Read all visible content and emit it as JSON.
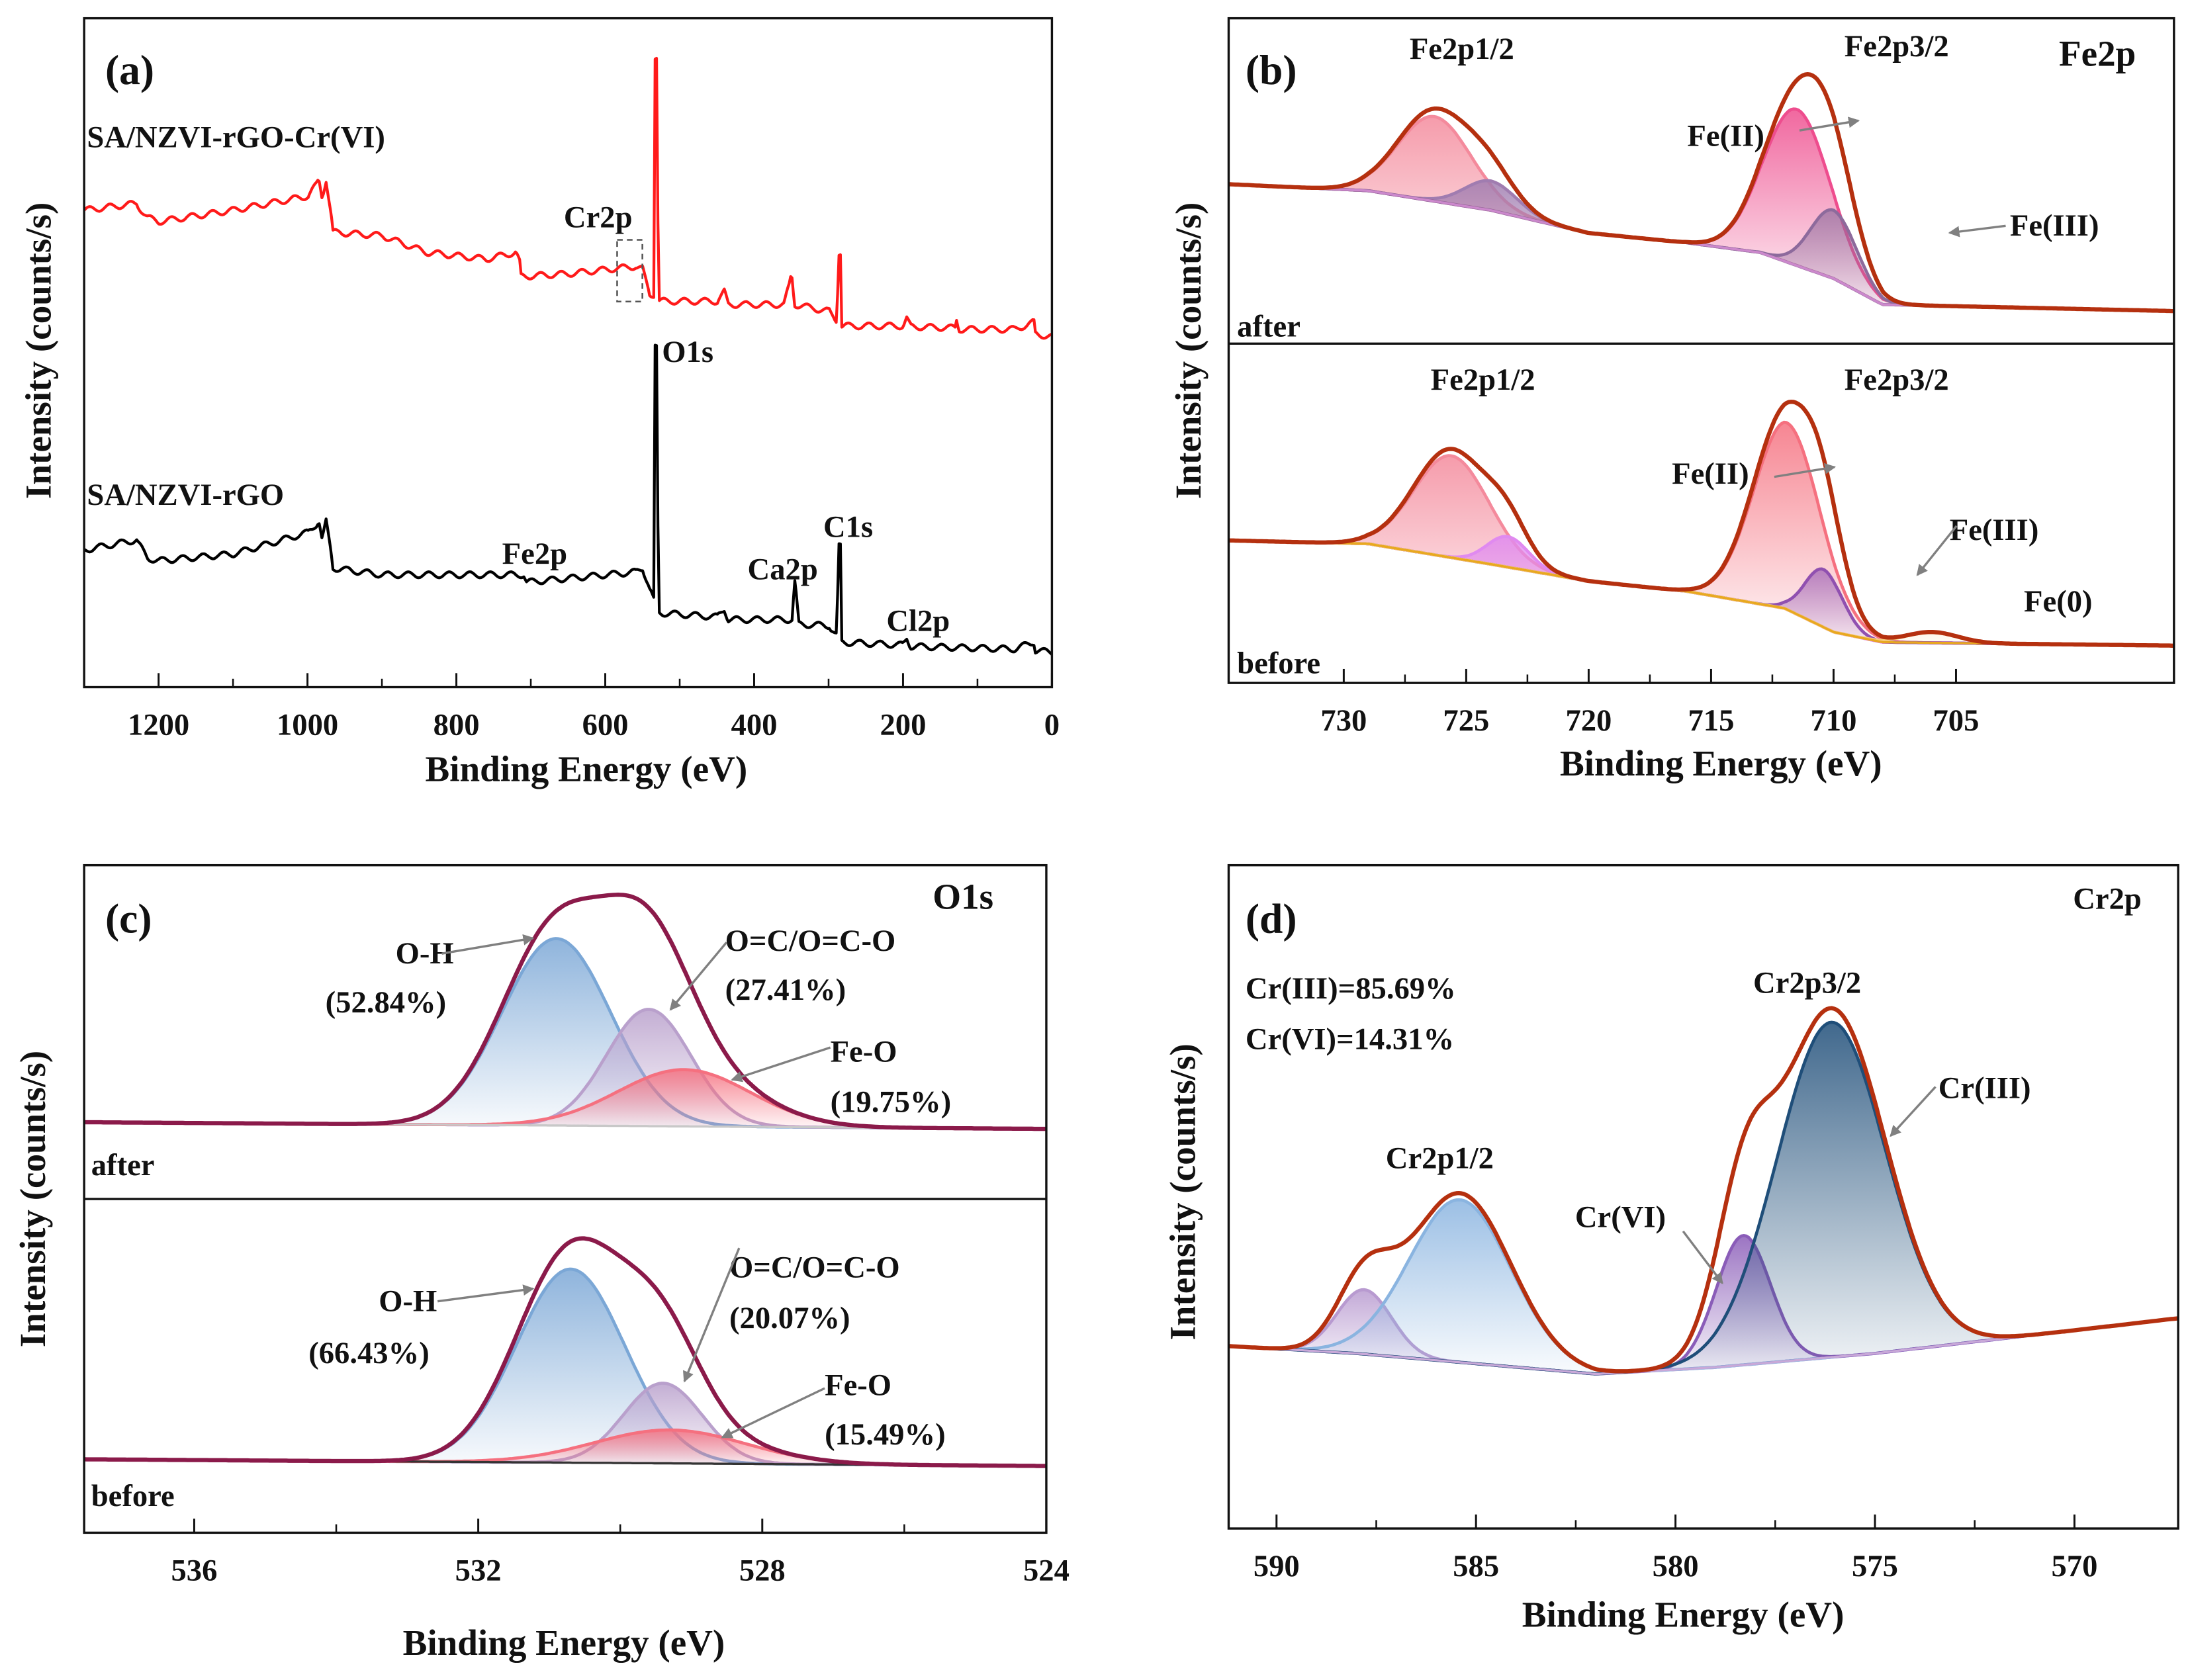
{
  "chart_data": [
    {
      "id": "a",
      "type": "line",
      "panel_label": "(a)",
      "title": "",
      "xlabel": "Binding Energy (eV)",
      "ylabel": "Intensity (counts/s)",
      "xlim": [
        1300,
        0
      ],
      "ylim": [
        0,
        100
      ],
      "x_reversed": true,
      "xticks": [
        1200,
        1000,
        800,
        600,
        400,
        200,
        0
      ],
      "grid": false,
      "series": [
        {
          "name": "SA/NZVI-rGO-Cr(VI)",
          "color": "#ff1a1a",
          "points": [
            [
              1300,
              71.3
            ],
            [
              1230,
              72.3
            ],
            [
              1215,
              70.2
            ],
            [
              1200,
              69.6
            ],
            [
              1100,
              71.3
            ],
            [
              1000,
              73.4
            ],
            [
              985,
              75.5
            ],
            [
              980,
              73.4
            ],
            [
              975,
              75.9
            ],
            [
              965,
              68
            ],
            [
              900,
              67.5
            ],
            [
              840,
              65
            ],
            [
              760,
              64
            ],
            [
              720,
              65
            ],
            [
              715,
              63.5
            ],
            [
              712,
              61.4
            ],
            [
              650,
              61.8
            ],
            [
              560,
              62.9
            ],
            [
              550,
              62.5
            ],
            [
              540,
              58.7
            ],
            [
              535,
              58.7
            ],
            [
              532,
              94.3
            ],
            [
              528,
              57.7
            ],
            [
              450,
              57.7
            ],
            [
              440,
              59.1
            ],
            [
              435,
              57.2
            ],
            [
              360,
              57.2
            ],
            [
              350,
              61.2
            ],
            [
              345,
              57.2
            ],
            [
              300,
              56.2
            ],
            [
              290,
              54.9
            ],
            [
              285,
              65
            ],
            [
              282,
              54
            ],
            [
              200,
              54
            ],
            [
              195,
              55.1
            ],
            [
              190,
              53.9
            ],
            [
              130,
              53.7
            ],
            [
              128,
              54.9
            ],
            [
              125,
              53.5
            ],
            [
              50,
              53.5
            ],
            [
              25,
              54.5
            ],
            [
              22,
              52.8
            ],
            [
              0,
              52.4
            ]
          ]
        },
        {
          "name": "SA/NZVI-rGO",
          "color": "#000000",
          "points": [
            [
              1300,
              20.5
            ],
            [
              1230,
              22
            ],
            [
              1215,
              19.3
            ],
            [
              1200,
              18.9
            ],
            [
              1100,
              19.9
            ],
            [
              1000,
              23.1
            ],
            [
              985,
              24.7
            ],
            [
              980,
              22.2
            ],
            [
              975,
              24.7
            ],
            [
              965,
              17.8
            ],
            [
              900,
              16.8
            ],
            [
              800,
              16.8
            ],
            [
              710,
              16.8
            ],
            [
              705,
              15.7
            ],
            [
              560,
              17.2
            ],
            [
              550,
              17.8
            ],
            [
              540,
              14.7
            ],
            [
              535,
              13
            ],
            [
              532,
              50.7
            ],
            [
              528,
              11.1
            ],
            [
              450,
              10.5
            ],
            [
              440,
              11.7
            ],
            [
              435,
              10.1
            ],
            [
              350,
              10.1
            ],
            [
              345,
              15.7
            ],
            [
              340,
              9.4
            ],
            [
              300,
              9.2
            ],
            [
              290,
              7.8
            ],
            [
              285,
              21
            ],
            [
              282,
              6.7
            ],
            [
              200,
              6.3
            ],
            [
              195,
              7.3
            ],
            [
              190,
              6.1
            ],
            [
              50,
              5.7
            ],
            [
              25,
              6.7
            ],
            [
              22,
              5.5
            ],
            [
              0,
              5.2
            ]
          ]
        }
      ],
      "annotations": [
        "Cr2p",
        "O1s",
        "Fe2p",
        "Ca2p",
        "C1s",
        "Cl2p"
      ]
    },
    {
      "id": "b",
      "type": "area",
      "panel_label": "(b)",
      "title": "Fe2p",
      "xlabel": "Binding Energy (eV)",
      "ylabel": "Intensity (counts/s)",
      "xlim": [
        734.7,
        696.1
      ],
      "ylim": [
        0,
        100
      ],
      "xticks": [
        730,
        725,
        720,
        715,
        710,
        705
      ],
      "grid": false,
      "envelope_color": "#b5300f",
      "subplots": [
        {
          "name": "after",
          "background": [
            [
              734.7,
              49
            ],
            [
              729,
              47
            ],
            [
              724,
              41
            ],
            [
              720,
              34
            ],
            [
              716,
              31
            ],
            [
              713,
              28
            ],
            [
              710,
              20
            ],
            [
              708,
              12
            ],
            [
              696.1,
              10
            ]
          ],
          "background_color": "#cc88cc",
          "components": [
            {
              "name": "Fe(II) 2p1/2",
              "center": 726.3,
              "fwhm": 3.5,
              "height": 26,
              "color": "#f48a9c"
            },
            {
              "name": "Fe(III) 2p1/2",
              "center": 724.0,
              "fwhm": 2.5,
              "height": 9,
              "color": "#a07cb0"
            },
            {
              "name": "Fe(II) 2p3/2",
              "center": 711.5,
              "fwhm": 3.2,
              "height": 48,
              "color": "#ee4d8e"
            },
            {
              "name": "Fe(III) 2p3/2",
              "center": 710.0,
              "fwhm": 2.2,
              "height": 21,
              "color": "#8d6a9c"
            }
          ]
        },
        {
          "name": "before",
          "background": [
            [
              734.7,
              42
            ],
            [
              729,
              41
            ],
            [
              724,
              35
            ],
            [
              720,
              30
            ],
            [
              716,
              27
            ],
            [
              712,
              22
            ],
            [
              710,
              15
            ],
            [
              708,
              12
            ],
            [
              696.1,
              11
            ]
          ],
          "background_color": "#e8a820",
          "components": [
            {
              "name": "Fe(II) 2p1/2",
              "center": 725.6,
              "fwhm": 3.6,
              "height": 30,
              "color": "#f48a9c"
            },
            {
              "name": "Fe(III) 2p1/2",
              "center": 723.3,
              "fwhm": 2.0,
              "height": 9,
              "color": "#e08af0"
            },
            {
              "name": "Fe(II) 2p3/2",
              "center": 711.9,
              "fwhm": 3.2,
              "height": 55,
              "color": "#f5707f"
            },
            {
              "name": "Fe(III) 2p3/2",
              "center": 710.4,
              "fwhm": 1.8,
              "height": 17,
              "color": "#9050b0"
            },
            {
              "name": "Fe(0)",
              "center": 706.0,
              "fwhm": 2.5,
              "height": 3,
              "color": "#f5c97a"
            }
          ]
        }
      ]
    },
    {
      "id": "c",
      "type": "area",
      "panel_label": "(c)",
      "title": "O1s",
      "xlabel": "Binding Energy (eV)",
      "ylabel": "Intensity (counts/s)",
      "xlim": [
        537.55,
        524
      ],
      "ylim": [
        0,
        100
      ],
      "xticks": [
        536,
        532,
        528,
        524
      ],
      "grid": false,
      "envelope_color": "#8b1a4a",
      "subplots": [
        {
          "name": "after",
          "background": [
            [
              537.55,
              23
            ],
            [
              524,
              21
            ]
          ],
          "background_color": "#c8c8c8",
          "components": [
            {
              "name": "O-H",
              "center": 530.9,
              "fwhm": 1.8,
              "height": 56,
              "color": "#7ba7d6",
              "percent": "52.84%"
            },
            {
              "name": "O=C/O=C-O",
              "center": 529.6,
              "fwhm": 1.4,
              "height": 35,
              "color": "#b9a0cc",
              "percent": "27.41%"
            },
            {
              "name": "Fe-O",
              "center": 529.1,
              "fwhm": 2.2,
              "height": 17,
              "color": "#f5707f",
              "percent": "19.75%"
            }
          ]
        },
        {
          "name": "before",
          "background": [
            [
              537.55,
              22
            ],
            [
              524,
              20
            ]
          ],
          "background_color": "#333333",
          "components": [
            {
              "name": "O-H",
              "center": 530.7,
              "fwhm": 1.8,
              "height": 58,
              "color": "#7ba7d6",
              "percent": "66.43%"
            },
            {
              "name": "O=C/O=C-O",
              "center": 529.4,
              "fwhm": 1.3,
              "height": 24,
              "color": "#b9a0cc",
              "percent": "20.07%"
            },
            {
              "name": "Fe-O",
              "center": 529.3,
              "fwhm": 2.5,
              "height": 10,
              "color": "#f5707f",
              "percent": "15.49%"
            }
          ]
        }
      ]
    },
    {
      "id": "d",
      "type": "area",
      "panel_label": "(d)",
      "title": "Cr2p",
      "xlabel": "Binding Energy (eV)",
      "ylabel": "Intensity (counts/s)",
      "xlim": [
        591.2,
        567.4
      ],
      "ylim": [
        0,
        100
      ],
      "xticks": [
        590,
        585,
        580,
        575,
        570
      ],
      "grid": false,
      "envelope_color": "#b5300f",
      "subplots": [
        {
          "name": "",
          "background": [
            [
              591.2,
              27.5
            ],
            [
              588,
              26.4
            ],
            [
              582,
              23.3
            ],
            [
              579,
              24.3
            ],
            [
              575,
              26.4
            ],
            [
              567.4,
              31.7
            ]
          ],
          "background_color": "#c8a8d8",
          "components": [
            {
              "name": "Cr(VI) 2p1/2",
              "center": 587.8,
              "fwhm": 1.6,
              "height": 9.7,
              "color": "#b89ad0"
            },
            {
              "name": "Cr(III) 2p1/2",
              "center": 585.4,
              "fwhm": 3.0,
              "height": 24.5,
              "color": "#8ab4e0"
            },
            {
              "name": "Cr(VI) 2p3/2",
              "center": 578.3,
              "fwhm": 1.6,
              "height": 19.5,
              "color": "#8a5cb8"
            },
            {
              "name": "Cr(III) 2p3/2",
              "center": 576.1,
              "fwhm": 3.2,
              "height": 50.5,
              "color": "#1f4e79"
            }
          ]
        }
      ],
      "ratios": [
        "Cr(III)=85.69%",
        "Cr(VI)=14.31%"
      ]
    }
  ],
  "labels": {
    "a": {
      "panel": "(a)",
      "series1": "SA/NZVI-rGO-Cr(VI)",
      "series2": "SA/NZVI-rGO",
      "cr2p": "Cr2p",
      "o1s": "O1s",
      "fe2p": "Fe2p",
      "ca2p": "Ca2p",
      "c1s": "C1s",
      "cl2p": "Cl2p",
      "xlabel": "Binding Energy (eV)",
      "ylabel": "Intensity (counts/s)",
      "ticks": [
        "1200",
        "1000",
        "800",
        "600",
        "400",
        "200",
        "0"
      ]
    },
    "b": {
      "panel": "(b)",
      "title": "Fe2p",
      "after_p12": "Fe2p1/2",
      "after_p32": "Fe2p3/2",
      "after_fe2": "Fe(II)",
      "after_fe3": "Fe(III)",
      "after": "after",
      "before_p12": "Fe2p1/2",
      "before_p32": "Fe2p3/2",
      "before_fe2": "Fe(II)",
      "before_fe3": "Fe(III)",
      "before_fe0": "Fe(0)",
      "before": "before",
      "xlabel": "Binding Energy (eV)",
      "ylabel": "Intensity (counts/s)",
      "ticks": [
        "730",
        "725",
        "720",
        "715",
        "710",
        "705"
      ]
    },
    "c": {
      "panel": "(c)",
      "title": "O1s",
      "after_oh": "O-H",
      "after_oh_pct": "(52.84%)",
      "after_oc": "O=C/O=C-O",
      "after_oc_pct": "(27.41%)",
      "after_feo": "Fe-O",
      "after_feo_pct": "(19.75%)",
      "after": "after",
      "before_oh": "O-H",
      "before_oh_pct": "(66.43%)",
      "before_oc": "O=C/O=C-O",
      "before_oc_pct": "(20.07%)",
      "before_feo": "Fe-O",
      "before_feo_pct": "(15.49%)",
      "before": "before",
      "xlabel": "Binding Energy (eV)",
      "ylabel": "Intensity (counts/s)",
      "ticks": [
        "536",
        "532",
        "528",
        "524"
      ]
    },
    "d": {
      "panel": "(d)",
      "title": "Cr2p",
      "ratio1": "Cr(III)=85.69%",
      "ratio2": "Cr(VI)=14.31%",
      "p32": "Cr2p3/2",
      "cr3": "Cr(III)",
      "p12": "Cr2p1/2",
      "cr6": "Cr(VI)",
      "xlabel": "Binding Energy (eV)",
      "ylabel": "Intensity (counts/s)",
      "ticks": [
        "590",
        "585",
        "580",
        "575",
        "570"
      ]
    }
  }
}
